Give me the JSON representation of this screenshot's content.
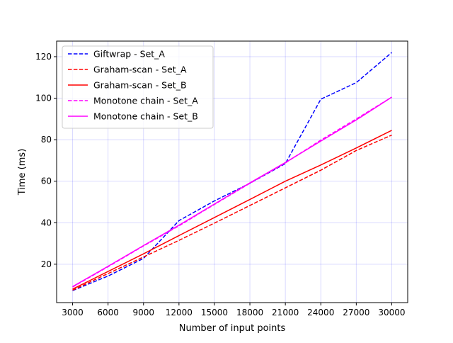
{
  "chart_data": {
    "type": "line",
    "title": "",
    "xlabel": "Number of input points",
    "ylabel": "Time (ms)",
    "xlim": [
      1650,
      31350
    ],
    "ylim": [
      1.5,
      127.5
    ],
    "x_ticks": [
      3000,
      6000,
      9000,
      12000,
      15000,
      18000,
      21000,
      24000,
      27000,
      30000
    ],
    "y_ticks": [
      20,
      40,
      60,
      80,
      100,
      120
    ],
    "grid": true,
    "grid_color": "#0000ff",
    "legend_position": "top-left",
    "x": [
      3000,
      6000,
      9000,
      12000,
      15000,
      18000,
      21000,
      24000,
      27000,
      30000
    ],
    "series": [
      {
        "name": "Giftwrap - Set_A",
        "color": "#0000ff",
        "dash": true,
        "values": [
          7.3,
          14.3,
          22.8,
          41.0,
          50.5,
          59.0,
          68.5,
          99.5,
          107.5,
          122.0
        ]
      },
      {
        "name": "Graham-scan - Set_A",
        "color": "#ff0000",
        "dash": true,
        "values": [
          7.5,
          15.5,
          23.5,
          31.5,
          39.8,
          48.3,
          56.8,
          65.3,
          74.8,
          82.2
        ]
      },
      {
        "name": "Graham-scan - Set_B",
        "color": "#ff0000",
        "dash": false,
        "values": [
          8.0,
          16.5,
          25.0,
          33.8,
          42.5,
          51.2,
          60.0,
          67.8,
          76.0,
          84.5
        ]
      },
      {
        "name": "Monotone chain - Set_A",
        "color": "#ff00ff",
        "dash": true,
        "values": [
          9.0,
          18.8,
          28.8,
          38.5,
          48.8,
          59.0,
          68.8,
          79.8,
          90.0,
          100.5
        ]
      },
      {
        "name": "Monotone chain - Set_B",
        "color": "#ff00ff",
        "dash": false,
        "values": [
          9.2,
          19.0,
          29.0,
          38.8,
          49.0,
          59.2,
          69.0,
          79.3,
          89.5,
          100.5
        ]
      }
    ]
  }
}
